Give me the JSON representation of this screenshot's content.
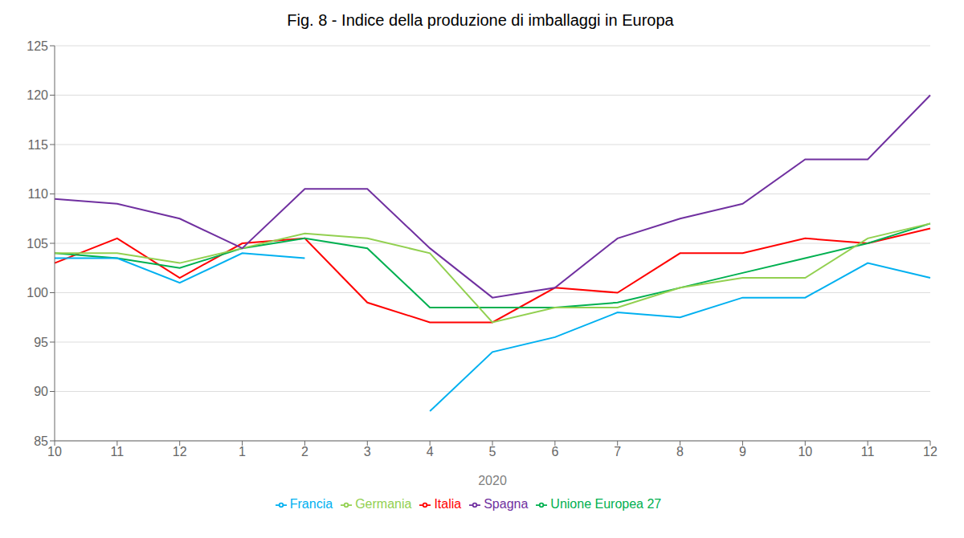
{
  "chart_data": {
    "type": "line",
    "title": "Fig. 8 - Indice della produzione di imballaggi in Europa",
    "xlabel": "2020",
    "categories": [
      "10",
      "11",
      "12",
      "1",
      "2",
      "3",
      "4",
      "5",
      "6",
      "7",
      "8",
      "9",
      "10",
      "11",
      "12"
    ],
    "series": [
      {
        "name": "Italia",
        "color": "#FF0000",
        "values": [
          103.0,
          105.5,
          101.5,
          105.0,
          105.5,
          99.0,
          97.0,
          97.0,
          100.5,
          100.0,
          104.0,
          104.0,
          105.5,
          105.0,
          106.5
        ]
      },
      {
        "name": "Unione Europea 27",
        "color": "#00B050",
        "values": [
          104.0,
          103.5,
          102.5,
          104.5,
          105.5,
          104.5,
          98.5,
          98.5,
          98.5,
          99.0,
          100.5,
          102.0,
          103.5,
          105.0,
          107.0
        ]
      },
      {
        "name": "Germania",
        "color": "#92D050",
        "values": [
          104.0,
          104.0,
          103.0,
          104.5,
          106.0,
          105.5,
          104.0,
          97.0,
          98.5,
          98.5,
          100.5,
          101.5,
          101.5,
          105.5,
          107.0
        ]
      },
      {
        "name": "Spagna",
        "color": "#7030A0",
        "values": [
          109.5,
          109.0,
          107.5,
          104.5,
          110.5,
          110.5,
          104.5,
          99.5,
          100.5,
          105.5,
          107.5,
          109.0,
          113.5,
          113.5,
          120.0
        ]
      },
      {
        "name": "Francia",
        "color": "#00B0F0",
        "values": [
          103.5,
          103.5,
          101.0,
          104.0,
          103.5,
          null,
          88.0,
          94.0,
          95.5,
          98.0,
          97.5,
          99.5,
          99.5,
          103.0,
          101.5
        ]
      }
    ],
    "ylim": [
      85,
      125
    ],
    "yticks": [
      85,
      90,
      95,
      100,
      105,
      110,
      115,
      120,
      125
    ],
    "grid": true,
    "legend": "bottom"
  }
}
